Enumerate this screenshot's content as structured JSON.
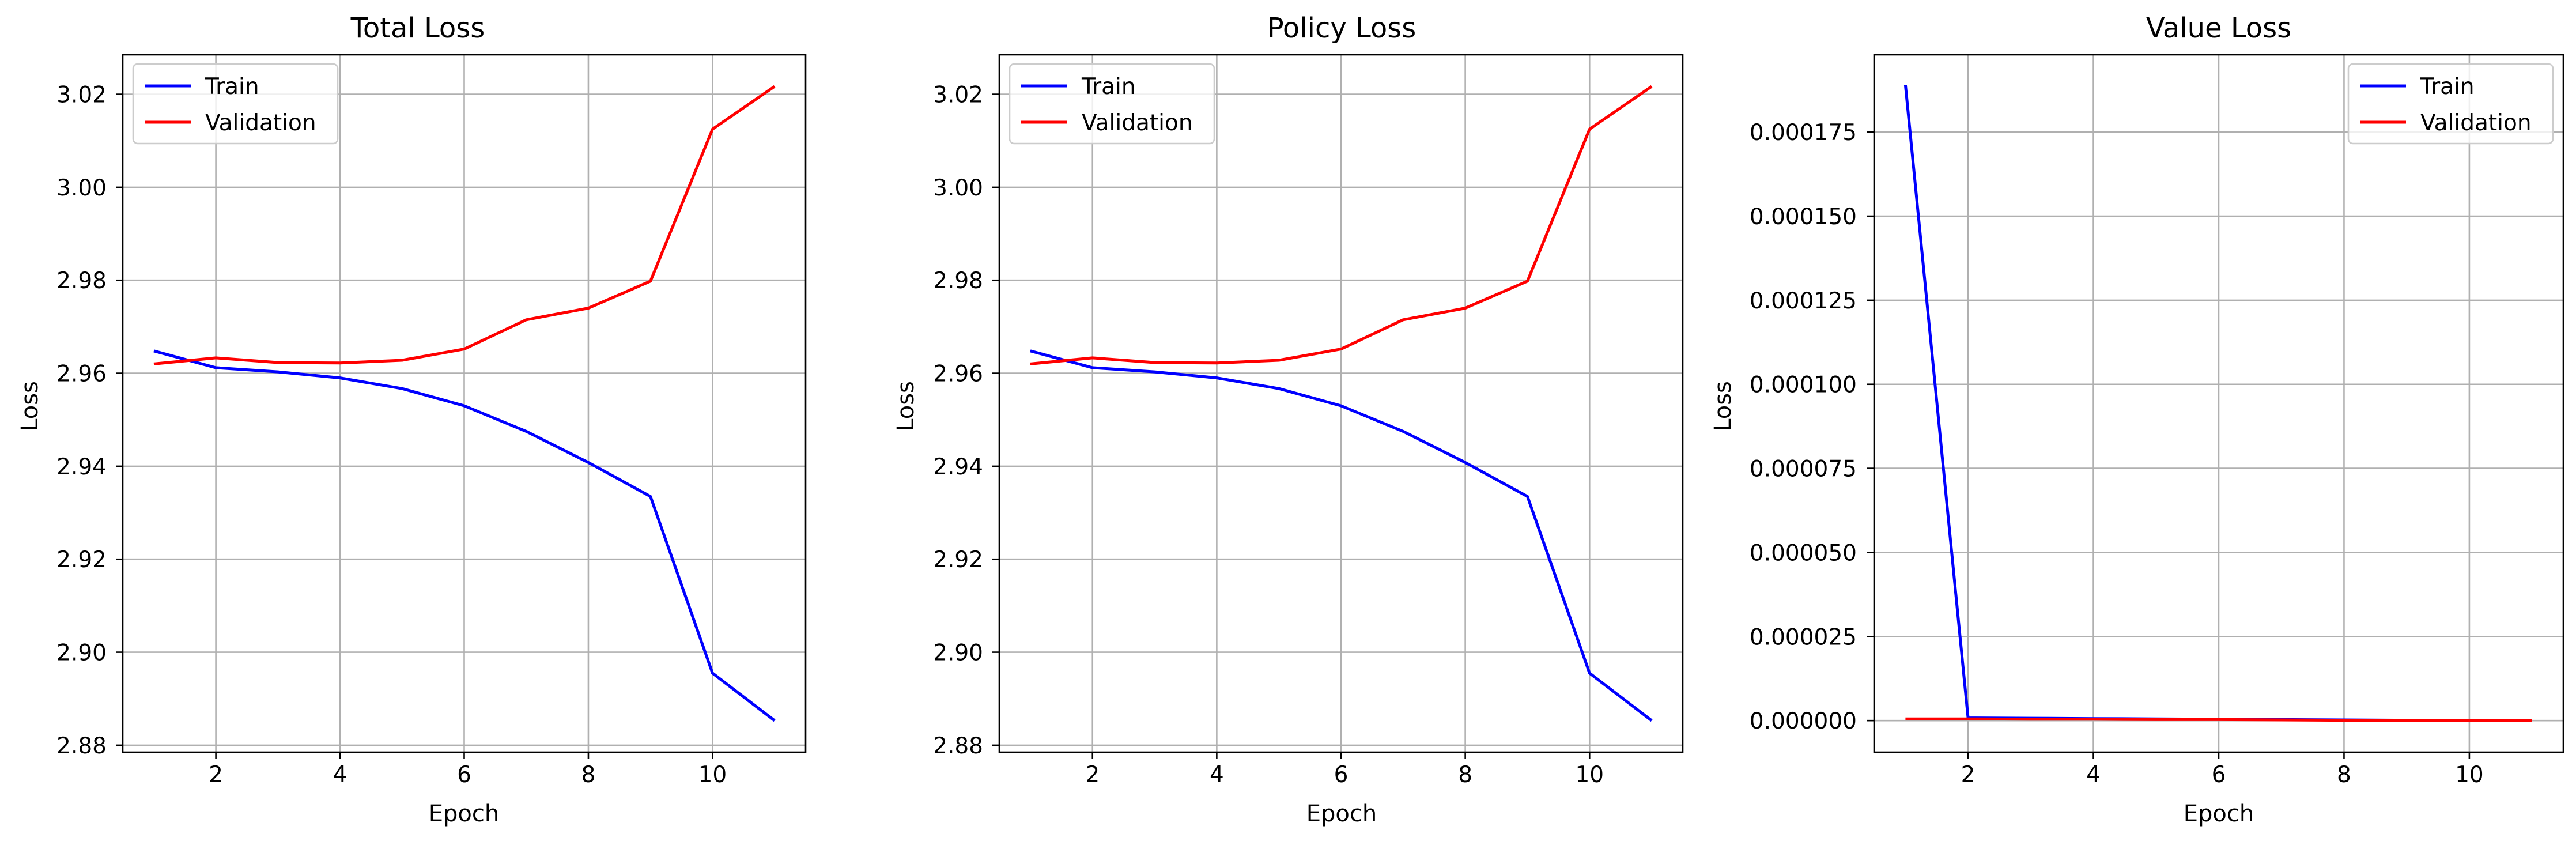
{
  "chart_data": [
    {
      "type": "line",
      "title": "Total Loss",
      "xlabel": "Epoch",
      "ylabel": "Loss",
      "xlim": [
        0.5,
        11.5
      ],
      "ylim": [
        2.8785,
        3.0285
      ],
      "xticks": [
        2,
        4,
        6,
        8,
        10
      ],
      "xtick_labels": [
        "2",
        "4",
        "6",
        "8",
        "10"
      ],
      "yticks": [
        2.88,
        2.9,
        2.92,
        2.94,
        2.96,
        2.98,
        3.0,
        3.02
      ],
      "ytick_labels": [
        "2.88",
        "2.90",
        "2.92",
        "2.94",
        "2.96",
        "2.98",
        "3.00",
        "3.02"
      ],
      "grid": true,
      "legend_position": "upper-left",
      "x": [
        1,
        2,
        3,
        4,
        5,
        6,
        7,
        8,
        9,
        10,
        11
      ],
      "series": [
        {
          "name": "Train",
          "color": "#0000ff",
          "values": [
            2.9648,
            2.9612,
            2.9603,
            2.959,
            2.9567,
            2.953,
            2.9475,
            2.9408,
            2.9335,
            2.8955,
            2.8853
          ]
        },
        {
          "name": "Validation",
          "color": "#ff0000",
          "values": [
            2.962,
            2.9633,
            2.9623,
            2.9622,
            2.9628,
            2.9652,
            2.9715,
            2.974,
            2.9798,
            3.0125,
            3.0217
          ]
        }
      ]
    },
    {
      "type": "line",
      "title": "Policy Loss",
      "xlabel": "Epoch",
      "ylabel": "Loss",
      "xlim": [
        0.5,
        11.5
      ],
      "ylim": [
        2.8785,
        3.0285
      ],
      "xticks": [
        2,
        4,
        6,
        8,
        10
      ],
      "xtick_labels": [
        "2",
        "4",
        "6",
        "8",
        "10"
      ],
      "yticks": [
        2.88,
        2.9,
        2.92,
        2.94,
        2.96,
        2.98,
        3.0,
        3.02
      ],
      "ytick_labels": [
        "2.88",
        "2.90",
        "2.92",
        "2.94",
        "2.96",
        "2.98",
        "3.00",
        "3.02"
      ],
      "grid": true,
      "legend_position": "upper-left",
      "x": [
        1,
        2,
        3,
        4,
        5,
        6,
        7,
        8,
        9,
        10,
        11
      ],
      "series": [
        {
          "name": "Train",
          "color": "#0000ff",
          "values": [
            2.9648,
            2.9612,
            2.9603,
            2.959,
            2.9567,
            2.953,
            2.9475,
            2.9408,
            2.9335,
            2.8955,
            2.8853
          ]
        },
        {
          "name": "Validation",
          "color": "#ff0000",
          "values": [
            2.962,
            2.9633,
            2.9623,
            2.9622,
            2.9628,
            2.9652,
            2.9715,
            2.974,
            2.9798,
            3.0125,
            3.0217
          ]
        }
      ]
    },
    {
      "type": "line",
      "title": "Value Loss",
      "xlabel": "Epoch",
      "ylabel": "Loss",
      "xlim": [
        0.5,
        11.5
      ],
      "ylim": [
        -9.4e-06,
        0.000198
      ],
      "xticks": [
        2,
        4,
        6,
        8,
        10
      ],
      "xtick_labels": [
        "2",
        "4",
        "6",
        "8",
        "10"
      ],
      "yticks": [
        0,
        2.5e-05,
        5e-05,
        7.5e-05,
        0.0001,
        0.000125,
        0.00015,
        0.000175
      ],
      "ytick_labels": [
        "0.000000",
        "0.000025",
        "0.000050",
        "0.000075",
        "0.000100",
        "0.000125",
        "0.000150",
        "0.000175"
      ],
      "grid": true,
      "legend_position": "upper-right",
      "x": [
        1,
        2,
        3,
        4,
        5,
        6,
        7,
        8,
        9,
        10,
        11
      ],
      "series": [
        {
          "name": "Train",
          "color": "#0000ff",
          "values": [
            0.000189,
            8e-07,
            7e-07,
            6e-07,
            5e-07,
            4e-07,
            3e-07,
            2e-07,
            1e-07,
            1e-07,
            5e-08
          ]
        },
        {
          "name": "Validation",
          "color": "#ff0000",
          "values": [
            5e-07,
            5e-07,
            4e-07,
            4e-07,
            3e-07,
            3e-07,
            2e-07,
            1e-07,
            1e-07,
            5e-08,
            2e-08
          ]
        }
      ]
    }
  ]
}
